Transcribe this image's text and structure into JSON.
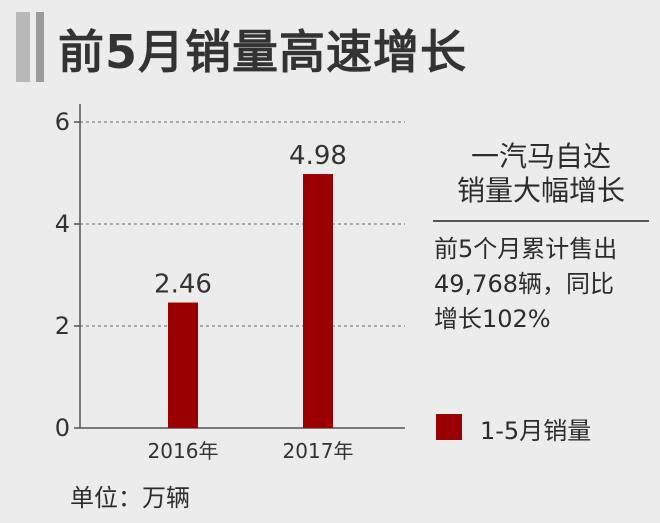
{
  "header": {
    "title": "前5月销量高速增长"
  },
  "side_panel": {
    "title_line1": "一汽马自达",
    "title_line2": "销量大幅增长",
    "note_line1": "前5个月累计售出",
    "note_line2": "49,768辆，同比",
    "note_line3": "增长102%"
  },
  "legend": {
    "label": "1-5月销量"
  },
  "unit_note": "单位：万辆",
  "colors": {
    "bar": "#9b0000",
    "background": "#ececec"
  },
  "chart_data": {
    "type": "bar",
    "categories": [
      "2016年",
      "2017年"
    ],
    "series": [
      {
        "name": "1-5月销量",
        "values": [
          2.46,
          4.98
        ]
      }
    ],
    "value_labels": [
      "2.46",
      "4.98"
    ],
    "y_ticks": [
      0,
      2,
      4,
      6
    ],
    "ylim": [
      0,
      6
    ],
    "grid": true,
    "legend_position": "right"
  }
}
